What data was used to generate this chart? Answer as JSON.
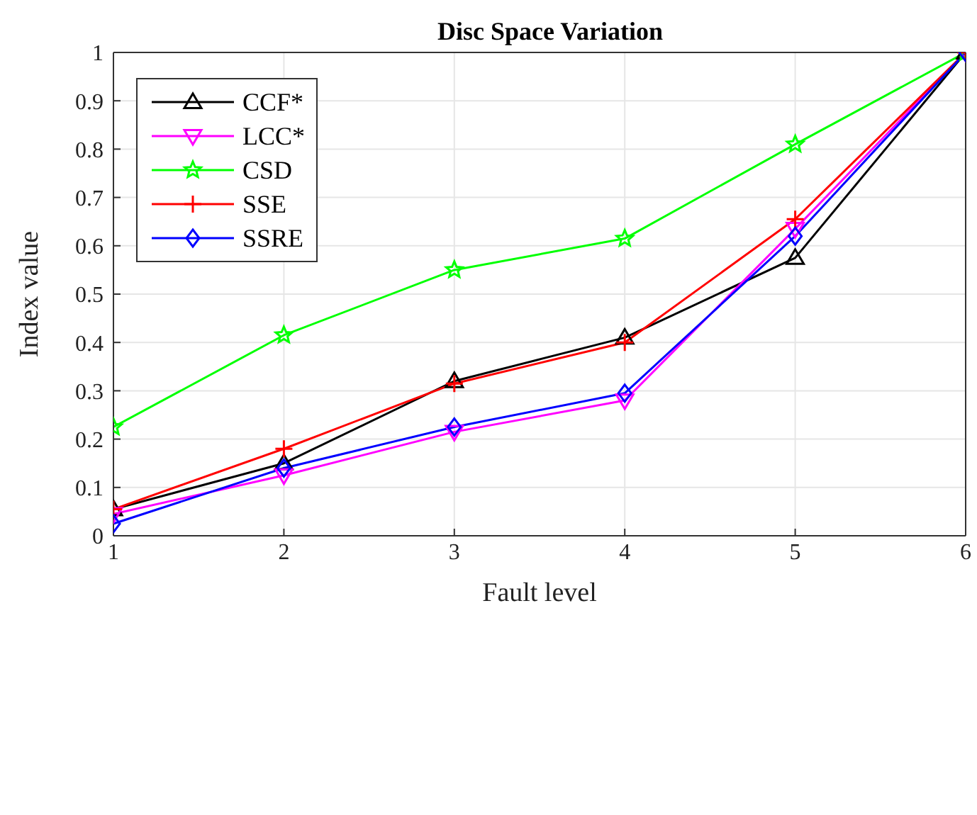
{
  "chart_data": {
    "type": "line",
    "title": "Disc Space Variation",
    "xlabel": "Fault level",
    "ylabel": "Index value",
    "x": [
      1,
      2,
      3,
      4,
      5,
      6
    ],
    "series": [
      {
        "name": "CCF*",
        "color": "#000000",
        "marker": "triangle",
        "values": [
          0.055,
          0.15,
          0.32,
          0.41,
          0.575,
          1
        ]
      },
      {
        "name": "LCC*",
        "color": "#ff00ff",
        "marker": "triangle-down",
        "values": [
          0.045,
          0.125,
          0.215,
          0.28,
          0.635,
          1
        ]
      },
      {
        "name": "CSD",
        "color": "#00ff00",
        "marker": "star",
        "values": [
          0.225,
          0.415,
          0.55,
          0.615,
          0.81,
          1
        ]
      },
      {
        "name": "SSE",
        "color": "#ff0000",
        "marker": "cross",
        "values": [
          0.055,
          0.18,
          0.315,
          0.4,
          0.655,
          1
        ]
      },
      {
        "name": "SSRE",
        "color": "#0000ff",
        "marker": "diamond",
        "values": [
          0.025,
          0.14,
          0.225,
          0.295,
          0.62,
          1
        ]
      }
    ],
    "xlim": [
      1,
      6
    ],
    "xticks": [
      1,
      2,
      3,
      4,
      5,
      6
    ],
    "ylim": [
      0,
      1
    ],
    "yticks": [
      0,
      0.1,
      0.2,
      0.3,
      0.4,
      0.5,
      0.6,
      0.7,
      0.8,
      0.9,
      1
    ],
    "grid": true,
    "legend": "top left",
    "line_style": "solid"
  }
}
